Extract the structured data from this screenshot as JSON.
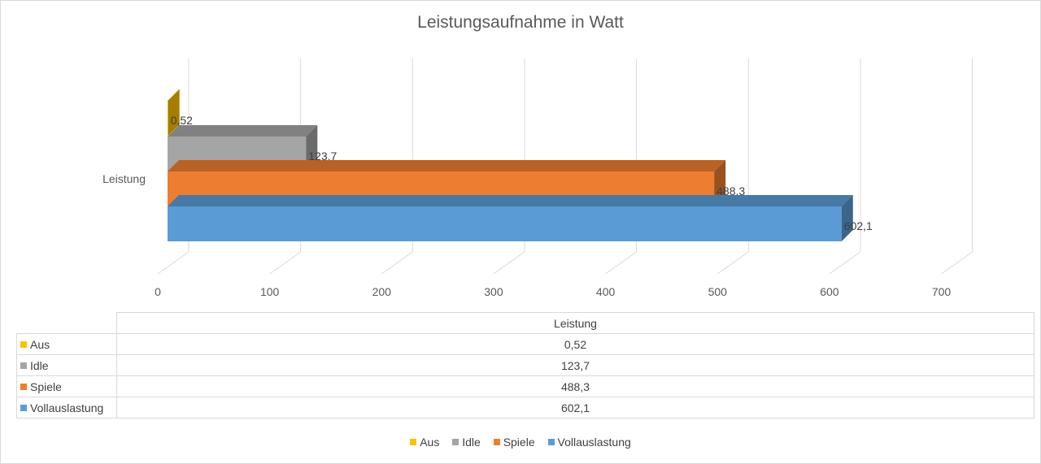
{
  "chart_data": {
    "type": "bar",
    "orientation": "horizontal",
    "style": "3d",
    "title": "Leistungsaufnahme in Watt",
    "categories": [
      "Leistung"
    ],
    "series": [
      {
        "name": "Aus",
        "values": [
          0.52
        ],
        "label": "0,52",
        "color": "#ffc000"
      },
      {
        "name": "Idle",
        "values": [
          123.7
        ],
        "label": "123,7",
        "color": "#a5a5a5"
      },
      {
        "name": "Spiele",
        "values": [
          488.3
        ],
        "label": "488,3",
        "color": "#ed7d31"
      },
      {
        "name": "Vollauslastung",
        "values": [
          602.1
        ],
        "label": "602,1",
        "color": "#5b9bd5"
      }
    ],
    "x_ticks": [
      "0",
      "100",
      "200",
      "300",
      "400",
      "500",
      "600",
      "700"
    ],
    "xlim": [
      0,
      700
    ],
    "grid": true,
    "legend_position": "bottom",
    "data_table": true
  },
  "table": {
    "header": "Leistung"
  }
}
